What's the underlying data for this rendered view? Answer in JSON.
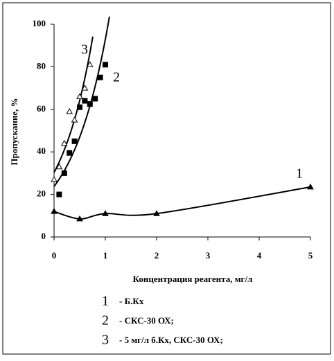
{
  "chart_data": {
    "type": "line",
    "x_label": "Концентрация реагента, мг/л",
    "y_label": "Пропускание, %",
    "xlim": [
      0,
      5
    ],
    "xticks": [
      0,
      1,
      2,
      3,
      4,
      5
    ],
    "ylim": [
      0,
      100
    ],
    "yticks": [
      0,
      20,
      40,
      60,
      80,
      100
    ],
    "series": [
      {
        "label": "1",
        "name": "- Б.Кх",
        "color": "#000000",
        "marker": "triangle",
        "fit": "smooth",
        "x": [
          0,
          0.5,
          1,
          2,
          5
        ],
        "values": [
          12,
          8.5,
          11,
          11,
          23.5
        ]
      },
      {
        "label": "2",
        "name": "- СКС-30 ОХ;",
        "color": "#000000",
        "marker": "square",
        "fit": "exponential",
        "x": [
          0.1,
          0.2,
          0.3,
          0.4,
          0.5,
          0.6,
          0.7,
          0.8,
          0.9,
          1.0
        ],
        "values": [
          20,
          30,
          39.5,
          45,
          61,
          64,
          62.5,
          65,
          75,
          81
        ]
      },
      {
        "label": "3",
        "name": "- 5 мг/л б.Кх, СКС-30 ОХ;",
        "color": "#000000",
        "marker": "open-triangle",
        "fit": "exponential",
        "x": [
          0,
          0.1,
          0.2,
          0.3,
          0.4,
          0.5,
          0.6,
          0.7
        ],
        "values": [
          27,
          33,
          44,
          59,
          55,
          66,
          70,
          81
        ]
      }
    ]
  }
}
